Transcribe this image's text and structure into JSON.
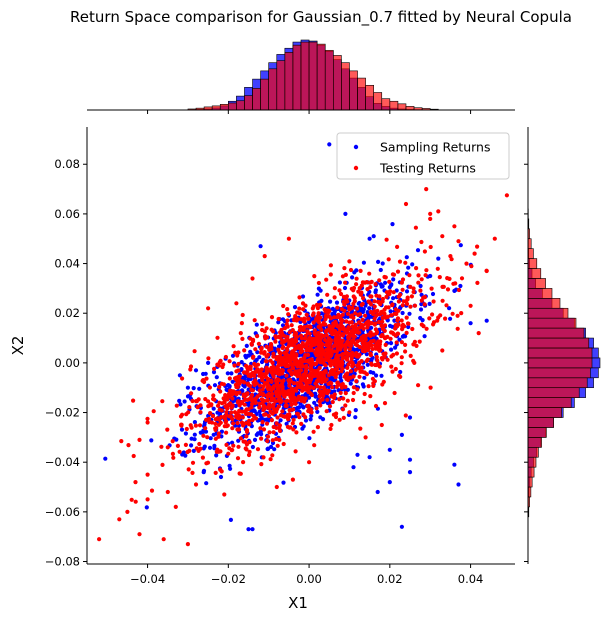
{
  "chart_data": {
    "type": "scatter",
    "title": "Return Space comparison for Gaussian_0.7 fitted by Neural Copula",
    "xlabel": "X1",
    "ylabel": "X2",
    "xlim": [
      -0.055,
      0.051
    ],
    "ylim": [
      -0.081,
      0.095
    ],
    "x_ticks": [
      -0.04,
      -0.02,
      0.0,
      0.02,
      0.04
    ],
    "x_tick_labels": [
      "−0.04",
      "−0.02",
      "0.00",
      "0.02",
      "0.04"
    ],
    "y_ticks": [
      -0.08,
      -0.06,
      -0.04,
      -0.02,
      0.0,
      0.02,
      0.04,
      0.06,
      0.08
    ],
    "y_tick_labels": [
      "−0.08",
      "−0.06",
      "−0.04",
      "−0.02",
      "0.00",
      "0.02",
      "0.04",
      "0.06",
      "0.08"
    ],
    "legend_position": "top-right",
    "grid": false,
    "colors": {
      "sampling": "#0000ff",
      "testing": "#ff0000",
      "overlap": "#a3145a"
    },
    "series": [
      {
        "name": "Sampling Returns",
        "color": "#0000ff",
        "approx_sigma_x": 0.0125,
        "approx_sigma_y": 0.0155,
        "approx_correlation": 0.7,
        "points": [
          [
            0.005,
            0.088
          ],
          [
            0.015,
            0.05
          ],
          [
            0.016,
            0.051
          ],
          [
            -0.012,
            0.047
          ],
          [
            0.009,
            0.06
          ],
          [
            0.044,
            0.017
          ],
          [
            0.036,
            -0.041
          ],
          [
            0.037,
            -0.049
          ],
          [
            0.023,
            -0.066
          ],
          [
            -0.014,
            -0.067
          ],
          [
            -0.015,
            -0.067
          ],
          [
            0.025,
            -0.039
          ],
          [
            0.02,
            -0.035
          ],
          [
            0.012,
            -0.037
          ],
          [
            0.015,
            -0.038
          ],
          [
            0.023,
            -0.029
          ],
          [
            0.025,
            -0.022
          ],
          [
            0.03,
            0.035
          ],
          [
            0.036,
            0.029
          ],
          [
            0.032,
            0.042
          ],
          [
            0.04,
            0.016
          ],
          [
            -0.03,
            -0.01
          ],
          [
            -0.032,
            -0.005
          ],
          [
            -0.028,
            -0.003
          ],
          [
            -0.025,
            0.0
          ],
          [
            0.02,
            -0.048
          ],
          [
            0.017,
            -0.052
          ],
          [
            0.011,
            -0.042
          ],
          [
            0.025,
            -0.044
          ]
        ]
      },
      {
        "name": "Testing Returns",
        "color": "#ff0000",
        "approx_sigma_x": 0.0145,
        "approx_sigma_y": 0.0165,
        "approx_correlation": 0.7,
        "points": [
          [
            -0.052,
            -0.071
          ],
          [
            -0.042,
            -0.069
          ],
          [
            -0.045,
            -0.06
          ],
          [
            -0.04,
            -0.055
          ],
          [
            -0.047,
            -0.063
          ],
          [
            -0.03,
            -0.073
          ],
          [
            -0.036,
            -0.071
          ],
          [
            -0.043,
            -0.048
          ],
          [
            -0.04,
            -0.045
          ],
          [
            -0.035,
            -0.052
          ],
          [
            -0.033,
            -0.058
          ],
          [
            -0.028,
            -0.049
          ],
          [
            -0.022,
            -0.043
          ],
          [
            -0.021,
            -0.053
          ],
          [
            -0.042,
            -0.031
          ],
          [
            -0.04,
            -0.024
          ],
          [
            -0.035,
            -0.034
          ],
          [
            0.029,
            0.07
          ],
          [
            0.024,
            0.064
          ],
          [
            0.03,
            0.06
          ],
          [
            0.03,
            0.058
          ],
          [
            0.032,
            0.061
          ],
          [
            0.036,
            0.055
          ],
          [
            0.037,
            0.049
          ],
          [
            0.046,
            0.05
          ],
          [
            0.041,
            0.044
          ],
          [
            0.039,
            0.04
          ],
          [
            0.044,
            0.037
          ],
          [
            0.033,
            0.051
          ],
          [
            0.035,
            0.043
          ],
          [
            -0.005,
            0.05
          ],
          [
            -0.011,
            0.043
          ],
          [
            -0.014,
            0.034
          ],
          [
            -0.018,
            0.024
          ],
          [
            -0.025,
            0.022
          ],
          [
            0.04,
            0.023
          ],
          [
            0.042,
            0.012
          ],
          [
            0.033,
            0.005
          ],
          [
            0.027,
            -0.009
          ],
          [
            0.014,
            -0.03
          ],
          [
            0.018,
            -0.025
          ],
          [
            -0.004,
            -0.047
          ],
          [
            -0.008,
            -0.05
          ],
          [
            0.0,
            -0.04
          ]
        ]
      }
    ]
  },
  "legend": {
    "items": [
      {
        "label": "Sampling Returns",
        "color": "#0000ff"
      },
      {
        "label": "Testing Returns",
        "color": "#ff0000"
      }
    ]
  },
  "marginal_x": {
    "bins": [
      -0.03,
      -0.028,
      -0.026,
      -0.024,
      -0.022,
      -0.02,
      -0.018,
      -0.016,
      -0.014,
      -0.012,
      -0.01,
      -0.008,
      -0.006,
      -0.004,
      -0.002,
      0.0,
      0.002,
      0.004,
      0.006,
      0.008,
      0.01,
      0.012,
      0.014,
      0.016,
      0.018,
      0.02,
      0.022,
      0.024,
      0.026,
      0.028,
      0.03,
      0.032
    ],
    "sampling": [
      0.1,
      0.5,
      1.0,
      2.0,
      4.0,
      8.5,
      13.5,
      22,
      30,
      38,
      46,
      54,
      60,
      66,
      68,
      67,
      63,
      57,
      49,
      40,
      31,
      22,
      13,
      6.5,
      3.5,
      1.8,
      1.0,
      0.5,
      0.3,
      0.1,
      0.05
    ],
    "testing": [
      1.0,
      1.8,
      3.0,
      4.0,
      5.5,
      6.8,
      9,
      14,
      21,
      30,
      40,
      48,
      56,
      63,
      66,
      66,
      64,
      58,
      53,
      46,
      38,
      31,
      24,
      17,
      11,
      8.5,
      6.0,
      3.5,
      2.2,
      1.5,
      0.8
    ]
  },
  "marginal_y": {
    "bins": [
      -0.062,
      -0.058,
      -0.054,
      -0.05,
      -0.046,
      -0.042,
      -0.038,
      -0.034,
      -0.03,
      -0.026,
      -0.022,
      -0.018,
      -0.014,
      -0.01,
      -0.006,
      -0.002,
      0.002,
      0.006,
      0.01,
      0.014,
      0.018,
      0.022,
      0.026,
      0.03,
      0.034,
      0.038,
      0.042,
      0.046,
      0.05,
      0.054,
      0.058,
      0.062
    ],
    "sampling": [
      0.1,
      0.2,
      0.6,
      1.2,
      2.0,
      3.5,
      5.5,
      8,
      11,
      16,
      22,
      29,
      36,
      41,
      44,
      45,
      44,
      41,
      36,
      29,
      22,
      15,
      9,
      4.8,
      2.5,
      1.0,
      0.4,
      0.2,
      0.1,
      0.05,
      0.02
    ],
    "testing": [
      0.5,
      1.0,
      1.8,
      2.6,
      3.8,
      5,
      6.5,
      8.5,
      11.5,
      16,
      21,
      27,
      32,
      37,
      39,
      40,
      40,
      38,
      35,
      30,
      25,
      20,
      15,
      11,
      8,
      5.5,
      3.4,
      2.0,
      1.0,
      0.5,
      0.2
    ]
  }
}
